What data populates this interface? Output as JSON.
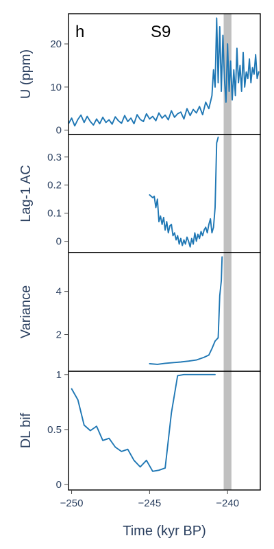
{
  "colors": {
    "line": "#1f77b4",
    "band": "#c0c0c0",
    "text": "#2a3f5f",
    "frame": "#000000"
  },
  "chart_data": {
    "type": "line",
    "panel_letter": "h",
    "record": "S9",
    "xlabel": "Time (kyr BP)",
    "xlim": [
      -250.2,
      -237.9
    ],
    "x_ticks": [
      -250,
      -245,
      -240
    ],
    "x_tick_labels": [
      "−250",
      "−245",
      "−240"
    ],
    "shaded_band": [
      -240.25,
      -239.75
    ],
    "panels": [
      {
        "id": "uranium",
        "ylabel": "U (ppm)",
        "ylim": [
          -1,
          27
        ],
        "y_ticks": [
          0,
          10,
          20
        ],
        "y_tick_labels": [
          "0",
          "10",
          "20"
        ],
        "x": [
          -250.2,
          -250.0,
          -249.8,
          -249.6,
          -249.4,
          -249.2,
          -249.0,
          -248.8,
          -248.6,
          -248.4,
          -248.2,
          -248.0,
          -247.8,
          -247.6,
          -247.4,
          -247.2,
          -247.0,
          -246.8,
          -246.6,
          -246.4,
          -246.2,
          -246.0,
          -245.8,
          -245.6,
          -245.4,
          -245.2,
          -245.0,
          -244.8,
          -244.6,
          -244.4,
          -244.2,
          -244.0,
          -243.8,
          -243.6,
          -243.4,
          -243.2,
          -243.0,
          -242.8,
          -242.6,
          -242.4,
          -242.2,
          -242.0,
          -241.8,
          -241.6,
          -241.4,
          -241.2,
          -241.0,
          -240.9,
          -240.8,
          -240.7,
          -240.6,
          -240.5,
          -240.4,
          -240.3,
          -240.2,
          -240.1,
          -240.0,
          -239.9,
          -239.8,
          -239.7,
          -239.6,
          -239.5,
          -239.4,
          -239.3,
          -239.2,
          -239.1,
          -239.0,
          -238.9,
          -238.8,
          -238.7,
          -238.6,
          -238.5,
          -238.4,
          -238.3,
          -238.2,
          -238.1,
          -238.0
        ],
        "y": [
          1.5,
          2.8,
          1.0,
          2.5,
          3.5,
          1.8,
          3.2,
          2.0,
          1.2,
          2.6,
          1.5,
          3.0,
          1.8,
          2.4,
          1.4,
          3.1,
          2.2,
          1.6,
          3.4,
          2.0,
          2.8,
          1.5,
          3.6,
          2.5,
          2.0,
          3.8,
          2.6,
          3.2,
          2.2,
          4.0,
          2.8,
          3.5,
          2.4,
          4.5,
          3.0,
          3.8,
          4.2,
          2.6,
          5.0,
          3.4,
          4.8,
          4.0,
          5.5,
          3.6,
          6.5,
          5.0,
          8.0,
          14.0,
          10.0,
          26.0,
          11.0,
          24.0,
          9.0,
          22.0,
          12.0,
          6.5,
          20.0,
          9.0,
          16.0,
          7.0,
          14.0,
          8.0,
          19.0,
          11.0,
          15.0,
          9.0,
          18.0,
          10.0,
          13.5,
          12.0,
          16.5,
          11.0,
          14.5,
          13.0,
          17.5,
          12.0,
          13.5
        ]
      },
      {
        "id": "lag1",
        "ylabel": "Lag-1 AC",
        "ylim": [
          -0.04,
          0.38
        ],
        "y_ticks": [
          0,
          0.1,
          0.2,
          0.3
        ],
        "y_tick_labels": [
          "0",
          "0.1",
          "0.2",
          "0.3"
        ],
        "x": [
          -245.0,
          -244.9,
          -244.8,
          -244.7,
          -244.6,
          -244.5,
          -244.4,
          -244.3,
          -244.2,
          -244.1,
          -244.0,
          -243.9,
          -243.8,
          -243.7,
          -243.6,
          -243.5,
          -243.4,
          -243.3,
          -243.2,
          -243.1,
          -243.0,
          -242.9,
          -242.8,
          -242.7,
          -242.6,
          -242.5,
          -242.4,
          -242.3,
          -242.2,
          -242.1,
          -242.0,
          -241.9,
          -241.8,
          -241.7,
          -241.6,
          -241.5,
          -241.4,
          -241.3,
          -241.2,
          -241.1,
          -241.0,
          -240.9,
          -240.8,
          -240.7,
          -240.6
        ],
        "y": [
          0.165,
          0.16,
          0.155,
          0.16,
          0.12,
          0.15,
          0.07,
          0.09,
          0.06,
          0.085,
          0.04,
          0.07,
          0.03,
          0.055,
          0.06,
          0.02,
          0.03,
          0.005,
          0.02,
          -0.01,
          0.01,
          -0.015,
          0.005,
          -0.01,
          0.015,
          0.0,
          -0.02,
          0.01,
          -0.01,
          0.03,
          0.0,
          0.025,
          0.01,
          0.035,
          0.02,
          0.04,
          0.05,
          0.03,
          0.06,
          0.08,
          0.03,
          0.05,
          0.12,
          0.35,
          0.37
        ]
      },
      {
        "id": "variance",
        "ylabel": "Variance",
        "ylim": [
          0.3,
          5.8
        ],
        "y_ticks": [
          2,
          4
        ],
        "y_tick_labels": [
          "2",
          "4"
        ],
        "x": [
          -245.0,
          -244.5,
          -244.0,
          -243.5,
          -243.0,
          -242.5,
          -242.0,
          -241.5,
          -241.2,
          -241.0,
          -240.8,
          -240.6,
          -240.5,
          -240.4,
          -240.35
        ],
        "y": [
          0.65,
          0.62,
          0.67,
          0.7,
          0.73,
          0.77,
          0.82,
          0.95,
          1.05,
          1.35,
          1.7,
          1.85,
          3.8,
          4.5,
          5.6
        ]
      },
      {
        "id": "dlbif",
        "ylabel": "DL bif",
        "ylim": [
          -0.05,
          1.03
        ],
        "y_ticks": [
          0,
          0.5,
          1
        ],
        "y_tick_labels": [
          "0",
          "0.5",
          "1"
        ],
        "x": [
          -250.0,
          -249.6,
          -249.2,
          -248.8,
          -248.4,
          -248.0,
          -247.6,
          -247.2,
          -246.8,
          -246.4,
          -246.0,
          -245.6,
          -245.2,
          -244.8,
          -244.4,
          -244.0,
          -243.6,
          -243.2,
          -242.8,
          -242.4,
          -242.0,
          -241.6,
          -241.2,
          -240.8
        ],
        "y": [
          0.87,
          0.77,
          0.54,
          0.49,
          0.53,
          0.4,
          0.42,
          0.34,
          0.3,
          0.32,
          0.22,
          0.16,
          0.22,
          0.12,
          0.13,
          0.15,
          0.65,
          0.99,
          1.0,
          1.0,
          1.0,
          1.0,
          1.0,
          1.0
        ]
      }
    ]
  }
}
